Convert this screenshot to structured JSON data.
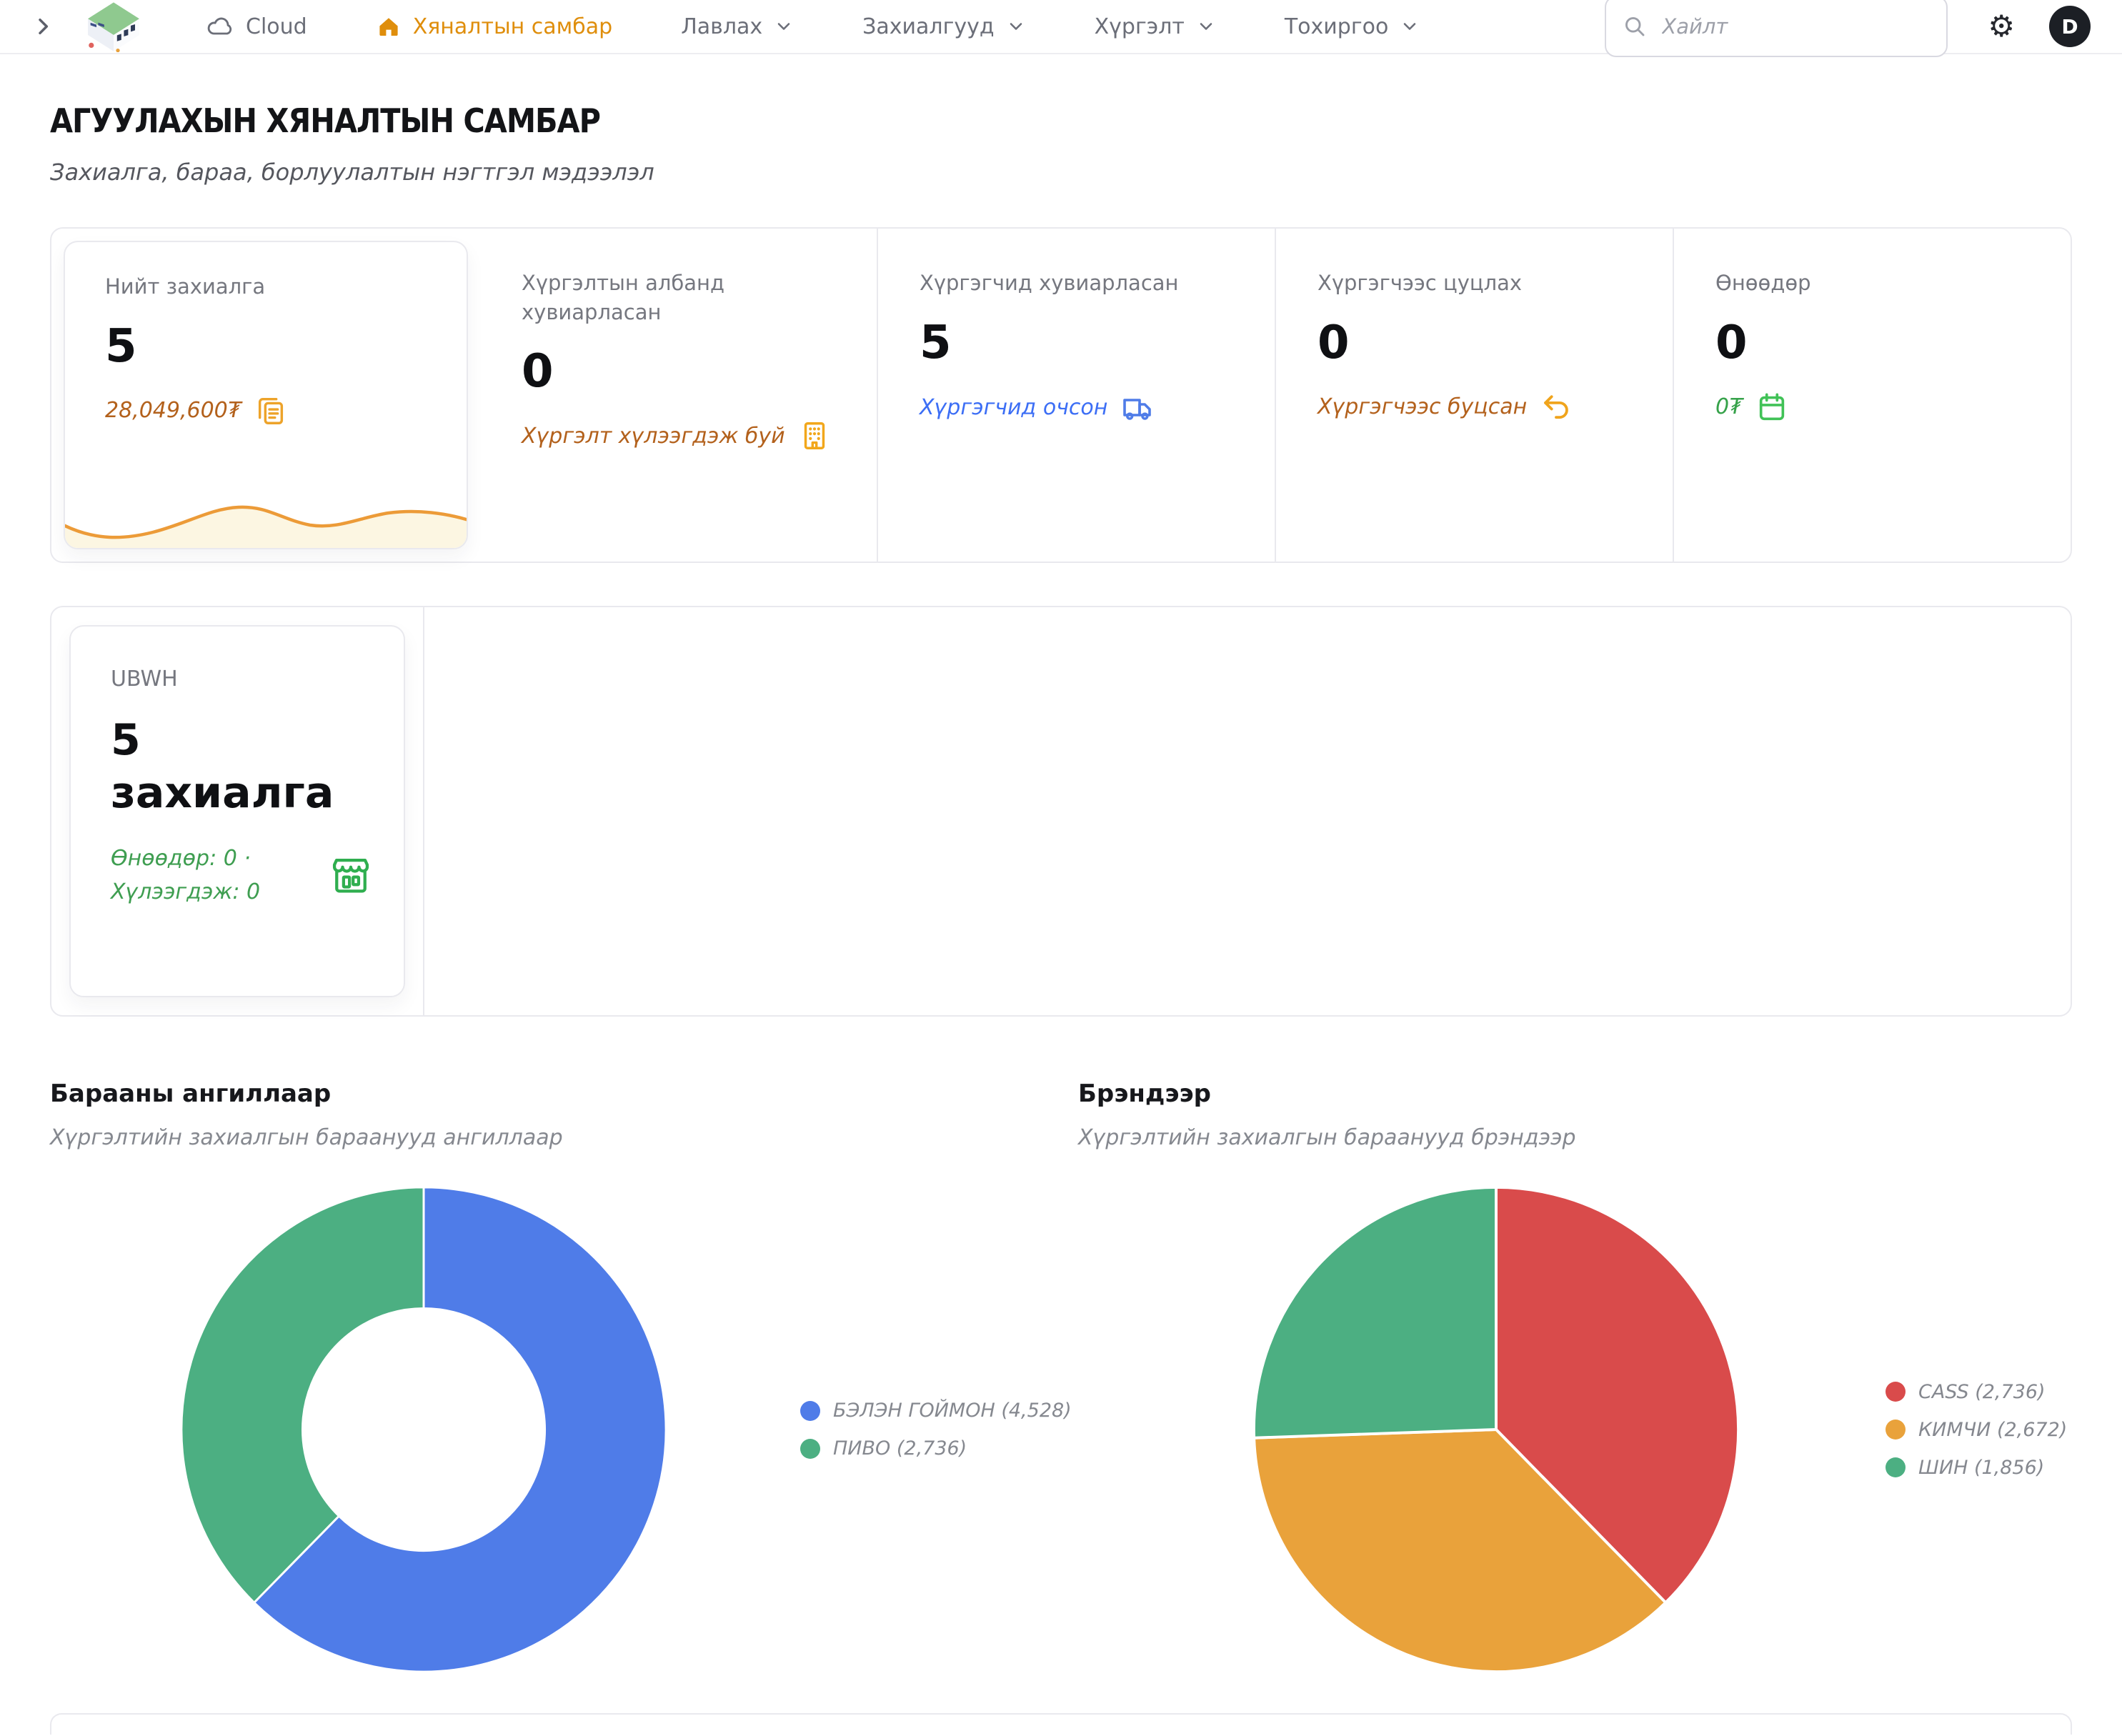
{
  "header": {
    "cloud_label": "Cloud",
    "nav_active": "Хяналтын самбар",
    "nav_items": [
      "Лавлах",
      "Захиалгууд",
      "Хүргэлт",
      "Тохиргоо"
    ],
    "search_placeholder": "Хайлт",
    "gear_glyph": "⚙",
    "avatar_initial": "D"
  },
  "page": {
    "title": "АГУУЛАХЫН ХЯНАЛТЫН САМБАР",
    "subtitle": "Захиалга, бараа, борлуулалтын нэгтгэл мэдээлэл"
  },
  "stats": {
    "cards": [
      {
        "label": "Нийт захиалга",
        "value": "5",
        "sub": "28,049,600₮",
        "icon": "clipboard-icon",
        "sub_color": "#b3611c",
        "icon_color": "#eda32a"
      },
      {
        "label": "Хүргэлтын албанд хувиарласан",
        "value": "0",
        "sub": "Хүргэлт хүлээгдэж буй",
        "icon": "building-icon",
        "sub_color": "#b3611c",
        "icon_color": "#f2a71b"
      },
      {
        "label": "Хүргэгчид хувиарласан",
        "value": "5",
        "sub": "Хүргэгчид очсон",
        "icon": "truck-icon",
        "sub_color": "#3c6ef5",
        "icon_color": "#4f7ce8"
      },
      {
        "label": "Хүргэгчээс цуцлах",
        "value": "0",
        "sub": "Хүргэгчээс буцсан",
        "icon": "undo-icon",
        "sub_color": "#b3611c",
        "icon_color": "#f0a41c"
      },
      {
        "label": "Өнөөдөр",
        "value": "0",
        "sub": "0₮",
        "icon": "calendar-icon",
        "sub_color": "#36a24a",
        "icon_color": "#41c257"
      }
    ]
  },
  "warehouse": {
    "code": "UBWH",
    "count": "5",
    "unit": "захиалга",
    "line1": "Өнөөдөр: 0 ·",
    "line2": "Хүлээгдэж: 0",
    "icon_color": "#2fae4f"
  },
  "chart_data": [
    {
      "type": "donut",
      "title": "Барааны ангиллаар",
      "subtitle": "Хүргэлтийн захиалгын бараанууд ангиллаар",
      "categories": [
        "БЭЛЭН ГОЙМОН",
        "ПИВО"
      ],
      "values": [
        4528,
        2736
      ],
      "colors": [
        "#4f7ce8",
        "#4caf82"
      ],
      "legend": [
        "БЭЛЭН ГОЙМОН (4,528)",
        "ПИВО (2,736)"
      ],
      "inner_radius_ratio": 0.5,
      "legend_position": "right",
      "start_angle_deg": -90,
      "direction": "clockwise"
    },
    {
      "type": "pie",
      "title": "Брэндээр",
      "subtitle": "Хүргэлтийн захиалгын бараанууд брэндээр",
      "categories": [
        "CASS",
        "КИМЧИ",
        "ШИН"
      ],
      "values": [
        2736,
        2672,
        1856
      ],
      "colors": [
        "#d94b4b",
        "#e9a23b",
        "#4caf82"
      ],
      "legend": [
        "CASS (2,736)",
        "КИМЧИ (2,672)",
        "ШИН (1,856)"
      ],
      "inner_radius_ratio": 0,
      "legend_position": "right",
      "start_angle_deg": -90,
      "direction": "clockwise"
    }
  ]
}
